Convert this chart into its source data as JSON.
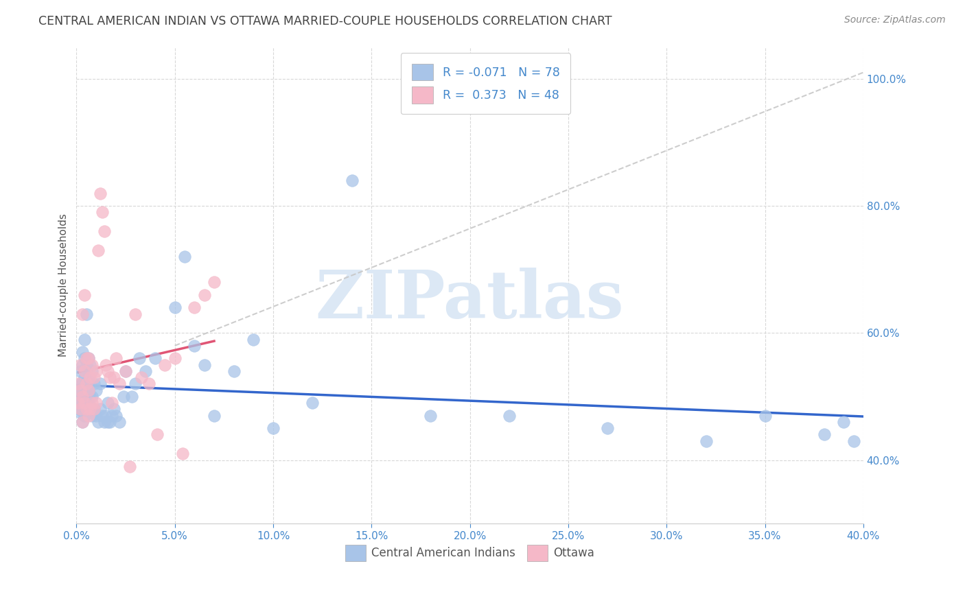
{
  "title": "CENTRAL AMERICAN INDIAN VS OTTAWA MARRIED-COUPLE HOUSEHOLDS CORRELATION CHART",
  "source": "Source: ZipAtlas.com",
  "ylabel": "Married-couple Households",
  "blue_R": -0.071,
  "blue_N": 78,
  "pink_R": 0.373,
  "pink_N": 48,
  "blue_color": "#a8c4e8",
  "pink_color": "#f5b8c8",
  "blue_line_color": "#3366cc",
  "pink_line_color": "#e05575",
  "dashed_line_color": "#c8c8c8",
  "grid_color": "#d8d8d8",
  "title_color": "#444444",
  "axis_tick_color": "#4488cc",
  "legend_text_color": "#4488cc",
  "source_color": "#888888",
  "ylabel_color": "#555555",
  "watermark_color": "#dce8f5",
  "background_color": "#ffffff",
  "xlim": [
    0.0,
    0.4
  ],
  "ylim": [
    0.3,
    1.05
  ],
  "blue_scatter_x": [
    0.001,
    0.001,
    0.001,
    0.002,
    0.002,
    0.002,
    0.002,
    0.002,
    0.003,
    0.003,
    0.003,
    0.003,
    0.003,
    0.003,
    0.004,
    0.004,
    0.004,
    0.004,
    0.004,
    0.004,
    0.005,
    0.005,
    0.005,
    0.005,
    0.005,
    0.006,
    0.006,
    0.006,
    0.006,
    0.007,
    0.007,
    0.007,
    0.007,
    0.008,
    0.008,
    0.008,
    0.009,
    0.009,
    0.01,
    0.01,
    0.011,
    0.012,
    0.012,
    0.013,
    0.014,
    0.015,
    0.016,
    0.016,
    0.017,
    0.018,
    0.019,
    0.02,
    0.022,
    0.024,
    0.025,
    0.028,
    0.03,
    0.032,
    0.035,
    0.04,
    0.05,
    0.055,
    0.06,
    0.065,
    0.07,
    0.08,
    0.09,
    0.1,
    0.12,
    0.14,
    0.18,
    0.22,
    0.27,
    0.32,
    0.35,
    0.38,
    0.39,
    0.395
  ],
  "blue_scatter_y": [
    0.48,
    0.495,
    0.51,
    0.475,
    0.49,
    0.505,
    0.52,
    0.54,
    0.46,
    0.48,
    0.5,
    0.52,
    0.55,
    0.57,
    0.47,
    0.49,
    0.51,
    0.53,
    0.56,
    0.59,
    0.48,
    0.5,
    0.52,
    0.55,
    0.63,
    0.49,
    0.51,
    0.53,
    0.56,
    0.48,
    0.5,
    0.52,
    0.55,
    0.47,
    0.5,
    0.54,
    0.48,
    0.52,
    0.47,
    0.51,
    0.46,
    0.48,
    0.52,
    0.47,
    0.46,
    0.47,
    0.46,
    0.49,
    0.46,
    0.47,
    0.48,
    0.47,
    0.46,
    0.5,
    0.54,
    0.5,
    0.52,
    0.56,
    0.54,
    0.56,
    0.64,
    0.72,
    0.58,
    0.55,
    0.47,
    0.54,
    0.59,
    0.45,
    0.49,
    0.84,
    0.47,
    0.47,
    0.45,
    0.43,
    0.47,
    0.44,
    0.46,
    0.43
  ],
  "pink_scatter_x": [
    0.001,
    0.001,
    0.002,
    0.002,
    0.002,
    0.003,
    0.003,
    0.003,
    0.004,
    0.004,
    0.004,
    0.005,
    0.005,
    0.005,
    0.006,
    0.006,
    0.006,
    0.007,
    0.007,
    0.008,
    0.008,
    0.009,
    0.009,
    0.01,
    0.01,
    0.011,
    0.012,
    0.013,
    0.014,
    0.015,
    0.016,
    0.017,
    0.018,
    0.019,
    0.02,
    0.022,
    0.025,
    0.027,
    0.03,
    0.033,
    0.037,
    0.041,
    0.045,
    0.05,
    0.054,
    0.06,
    0.065,
    0.07
  ],
  "pink_scatter_y": [
    0.49,
    0.52,
    0.48,
    0.51,
    0.55,
    0.46,
    0.5,
    0.63,
    0.49,
    0.54,
    0.66,
    0.48,
    0.52,
    0.56,
    0.47,
    0.51,
    0.56,
    0.48,
    0.53,
    0.49,
    0.55,
    0.48,
    0.53,
    0.49,
    0.54,
    0.73,
    0.82,
    0.79,
    0.76,
    0.55,
    0.54,
    0.53,
    0.49,
    0.53,
    0.56,
    0.52,
    0.54,
    0.39,
    0.63,
    0.53,
    0.52,
    0.44,
    0.55,
    0.56,
    0.41,
    0.64,
    0.66,
    0.68
  ]
}
